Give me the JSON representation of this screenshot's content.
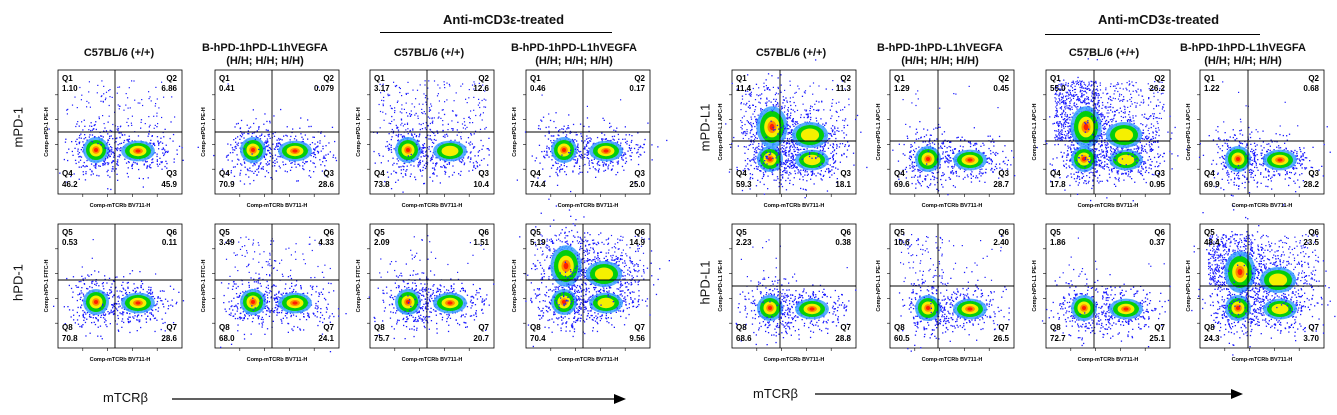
{
  "figure": {
    "treated_label": "Anti-mCD3ε-treated",
    "x_axis_label": "mTCRβ",
    "left": {
      "columns": [
        "C57BL/6 (+/+)",
        "B-hPD-1hPD-L1hVEGFA\n(H/H; H/H; H/H)",
        "C57BL/6 (+/+)",
        "B-hPD-1hPD-L1hVEGFA\n(H/H; H/H; H/H)"
      ],
      "rows": [
        "mPD-1",
        "hPD-1"
      ]
    },
    "right": {
      "columns": [
        "C57BL/6 (+/+)",
        "B-hPD-1hPD-L1hVEGFA\n(H/H; H/H; H/H)",
        "C57BL/6 (+/+)",
        "B-hPD-1hPD-L1hVEGFA\n(H/H; H/H; H/H)"
      ],
      "rows": [
        "mPD-L1",
        "hPD-L1"
      ]
    }
  },
  "colors": {
    "scatter_low": "#1a1aff",
    "scatter_mid": "#00d000",
    "scatter_high": "#ff2000",
    "gate": "#000000"
  },
  "chart_data": [
    {
      "type": "scatter",
      "title": "C57BL/6 (+/+)",
      "xlabel": "Comp-mTCRb BV711-H",
      "ylabel": "Comp-mPD-1 PE-H",
      "quadrants": [
        {
          "name": "Q1",
          "value": "1.10"
        },
        {
          "name": "Q2",
          "value": "6.86"
        },
        {
          "name": "Q3",
          "value": "45.9"
        },
        {
          "name": "Q4",
          "value": "46.2"
        }
      ]
    },
    {
      "type": "scatter",
      "title": "B-hPD-1hPD-L1hVEGFA (H/H; H/H; H/H)",
      "xlabel": "Comp-mTCRb BV711-H",
      "ylabel": "Comp-mPD-1 PE-H",
      "quadrants": [
        {
          "name": "Q1",
          "value": "0.41"
        },
        {
          "name": "Q2",
          "value": "0.079"
        },
        {
          "name": "Q3",
          "value": "28.6"
        },
        {
          "name": "Q4",
          "value": "70.9"
        }
      ]
    },
    {
      "type": "scatter",
      "title": "C57BL/6 (+/+)",
      "xlabel": "Comp-mTCRb BV711-H",
      "ylabel": "Comp-mPD-1 PE-H",
      "quadrants": [
        {
          "name": "Q1",
          "value": "3.17"
        },
        {
          "name": "Q2",
          "value": "12.6"
        },
        {
          "name": "Q3",
          "value": "10.4"
        },
        {
          "name": "Q4",
          "value": "73.8"
        }
      ]
    },
    {
      "type": "scatter",
      "title": "B-hPD-1hPD-L1hVEGFA (H/H; H/H; H/H)",
      "xlabel": "Comp-mTCRb BV711-H",
      "ylabel": "Comp-mPD-1 PE-H",
      "quadrants": [
        {
          "name": "Q1",
          "value": "0.46"
        },
        {
          "name": "Q2",
          "value": "0.17"
        },
        {
          "name": "Q3",
          "value": "25.0"
        },
        {
          "name": "Q4",
          "value": "74.4"
        }
      ]
    },
    {
      "type": "scatter",
      "title": "C57BL/6 (+/+)",
      "xlabel": "Comp-mTCRb BV711-H",
      "ylabel": "Comp-hPD-1 FITC-H",
      "quadrants": [
        {
          "name": "Q5",
          "value": "0.53"
        },
        {
          "name": "Q6",
          "value": "0.11"
        },
        {
          "name": "Q7",
          "value": "28.6"
        },
        {
          "name": "Q8",
          "value": "70.8"
        }
      ]
    },
    {
      "type": "scatter",
      "title": "B-hPD-1hPD-L1hVEGFA (H/H; H/H; H/H)",
      "xlabel": "Comp-mTCRb BV711-H",
      "ylabel": "Comp-hPD-1 FITC-H",
      "quadrants": [
        {
          "name": "Q5",
          "value": "3.49"
        },
        {
          "name": "Q6",
          "value": "4.33"
        },
        {
          "name": "Q7",
          "value": "24.1"
        },
        {
          "name": "Q8",
          "value": "68.0"
        }
      ]
    },
    {
      "type": "scatter",
      "title": "C57BL/6 (+/+)",
      "xlabel": "Comp-mTCRb BV711-H",
      "ylabel": "Comp-hPD-1 FITC-H",
      "quadrants": [
        {
          "name": "Q5",
          "value": "2.09"
        },
        {
          "name": "Q6",
          "value": "1.51"
        },
        {
          "name": "Q7",
          "value": "20.7"
        },
        {
          "name": "Q8",
          "value": "75.7"
        }
      ]
    },
    {
      "type": "scatter",
      "title": "B-hPD-1hPD-L1hVEGFA (H/H; H/H; H/H)",
      "xlabel": "Comp-mTCRb BV711-H",
      "ylabel": "Comp-hPD-1 FITC-H",
      "quadrants": [
        {
          "name": "Q5",
          "value": "5.19"
        },
        {
          "name": "Q6",
          "value": "14.9"
        },
        {
          "name": "Q7",
          "value": "9.56"
        },
        {
          "name": "Q8",
          "value": "70.4"
        }
      ]
    },
    {
      "type": "scatter",
      "title": "C57BL/6 (+/+)",
      "xlabel": "Comp-mTCRb BV711-H",
      "ylabel": "Comp-mPD-L1 APC-H",
      "quadrants": [
        {
          "name": "Q1",
          "value": "11.4"
        },
        {
          "name": "Q2",
          "value": "11.3"
        },
        {
          "name": "Q3",
          "value": "18.1"
        },
        {
          "name": "Q4",
          "value": "59.3"
        }
      ]
    },
    {
      "type": "scatter",
      "title": "B-hPD-1hPD-L1hVEGFA (H/H; H/H; H/H)",
      "xlabel": "Comp-mTCRb BV711-H",
      "ylabel": "Comp-mPD-L1 APC-H",
      "quadrants": [
        {
          "name": "Q1",
          "value": "1.29"
        },
        {
          "name": "Q2",
          "value": "0.45"
        },
        {
          "name": "Q3",
          "value": "28.7"
        },
        {
          "name": "Q4",
          "value": "69.6"
        }
      ]
    },
    {
      "type": "scatter",
      "title": "C57BL/6 (+/+)",
      "xlabel": "Comp-mTCRb BV711-H",
      "ylabel": "Comp-mPD-L1 APC-H",
      "quadrants": [
        {
          "name": "Q1",
          "value": "55.0"
        },
        {
          "name": "Q2",
          "value": "26.2"
        },
        {
          "name": "Q3",
          "value": "0.95"
        },
        {
          "name": "Q4",
          "value": "17.8"
        }
      ]
    },
    {
      "type": "scatter",
      "title": "B-hPD-1hPD-L1hVEGFA (H/H; H/H; H/H)",
      "xlabel": "Comp-mTCRb BV711-H",
      "ylabel": "Comp-mPD-L1 APC-H",
      "quadrants": [
        {
          "name": "Q1",
          "value": "1.22"
        },
        {
          "name": "Q2",
          "value": "0.68"
        },
        {
          "name": "Q3",
          "value": "28.2"
        },
        {
          "name": "Q4",
          "value": "69.9"
        }
      ]
    },
    {
      "type": "scatter",
      "title": "C57BL/6 (+/+)",
      "xlabel": "Comp-mTCRb BV711-H",
      "ylabel": "Comp-hPD-L1 PE-H",
      "quadrants": [
        {
          "name": "Q5",
          "value": "2.23"
        },
        {
          "name": "Q6",
          "value": "0.38"
        },
        {
          "name": "Q7",
          "value": "28.8"
        },
        {
          "name": "Q8",
          "value": "68.6"
        }
      ]
    },
    {
      "type": "scatter",
      "title": "B-hPD-1hPD-L1hVEGFA (H/H; H/H; H/H)",
      "xlabel": "Comp-mTCRb BV711-H",
      "ylabel": "Comp-hPD-L1 PE-H",
      "quadrants": [
        {
          "name": "Q5",
          "value": "10.6"
        },
        {
          "name": "Q6",
          "value": "2.40"
        },
        {
          "name": "Q7",
          "value": "26.5"
        },
        {
          "name": "Q8",
          "value": "60.5"
        }
      ]
    },
    {
      "type": "scatter",
      "title": "C57BL/6 (+/+)",
      "xlabel": "Comp-mTCRb BV711-H",
      "ylabel": "Comp-hPD-L1 PE-H",
      "quadrants": [
        {
          "name": "Q5",
          "value": "1.86"
        },
        {
          "name": "Q6",
          "value": "0.37"
        },
        {
          "name": "Q7",
          "value": "25.1"
        },
        {
          "name": "Q8",
          "value": "72.7"
        }
      ]
    },
    {
      "type": "scatter",
      "title": "B-hPD-1hPD-L1hVEGFA (H/H; H/H; H/H)",
      "xlabel": "Comp-mTCRb BV711-H",
      "ylabel": "Comp-hPD-L1 PE-H",
      "quadrants": [
        {
          "name": "Q5",
          "value": "48.4"
        },
        {
          "name": "Q6",
          "value": "23.5"
        },
        {
          "name": "Q7",
          "value": "3.70"
        },
        {
          "name": "Q8",
          "value": "24.3"
        }
      ]
    }
  ]
}
